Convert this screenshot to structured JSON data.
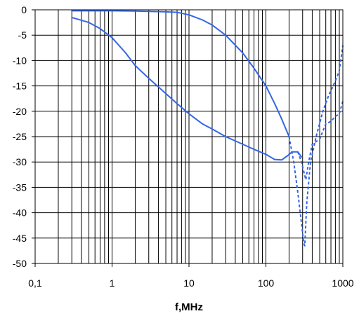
{
  "chart_data": {
    "type": "line",
    "title": "",
    "xlabel": "f,MHz",
    "ylabel": "",
    "x_scale": "log",
    "xlim": [
      0.1,
      1000
    ],
    "ylim": [
      -50,
      0
    ],
    "x_ticks": [
      0.1,
      1,
      10,
      100,
      1000
    ],
    "x_tick_labels": [
      "0,1",
      "1",
      "10",
      "100",
      "1000"
    ],
    "y_ticks": [
      0,
      -5,
      -10,
      -15,
      -20,
      -25,
      -30,
      -35,
      -40,
      -45,
      -50
    ],
    "y_tick_labels": [
      "0",
      "-5",
      "-10",
      "-15",
      "-20",
      "-25",
      "-30",
      "-35",
      "-40",
      "-45",
      "-50"
    ],
    "grid": true,
    "legend": "none",
    "line_color": "#3366e6",
    "series": [
      {
        "style": "solid",
        "x": [
          0.3,
          0.5,
          1,
          2,
          3,
          5,
          7,
          10,
          15,
          20,
          30,
          50,
          70,
          100,
          130,
          160,
          200
        ],
        "y": [
          -0.2,
          -0.2,
          -0.2,
          -0.25,
          -0.3,
          -0.4,
          -0.5,
          -1.0,
          -2.0,
          -3.0,
          -5.0,
          -8.5,
          -11.5,
          -15.0,
          -18.5,
          -21.5,
          -25.0
        ]
      },
      {
        "style": "dashed",
        "x": [
          200,
          230,
          260,
          290,
          310,
          320,
          340,
          380,
          450,
          550,
          650,
          800,
          900,
          1000
        ],
        "y": [
          -25.0,
          -30.0,
          -36.0,
          -42.0,
          -46.0,
          -46.5,
          -38.0,
          -30.0,
          -25.0,
          -20.0,
          -17.0,
          -14.0,
          -12.0,
          -7.0
        ]
      },
      {
        "style": "solid",
        "x": [
          0.3,
          0.5,
          0.7,
          1,
          1.5,
          2,
          3,
          5,
          7,
          10,
          15,
          20,
          30,
          50,
          70,
          100,
          130,
          160,
          190,
          220,
          260,
          290
        ],
        "y": [
          -1.5,
          -2.5,
          -3.7,
          -5.5,
          -8.5,
          -11.0,
          -13.5,
          -16.5,
          -18.5,
          -20.5,
          -22.5,
          -23.5,
          -25.0,
          -26.5,
          -27.5,
          -28.5,
          -29.5,
          -29.6,
          -28.8,
          -28.0,
          -28.0,
          -29.0
        ]
      },
      {
        "style": "dashed",
        "x": [
          260,
          290,
          330,
          360,
          400,
          500,
          600,
          700,
          800,
          900,
          1000
        ],
        "y": [
          -28.0,
          -30.0,
          -33.5,
          -30.0,
          -26.5,
          -25.5,
          -22.5,
          -22.0,
          -21.0,
          -20.5,
          -18.0
        ]
      }
    ]
  }
}
